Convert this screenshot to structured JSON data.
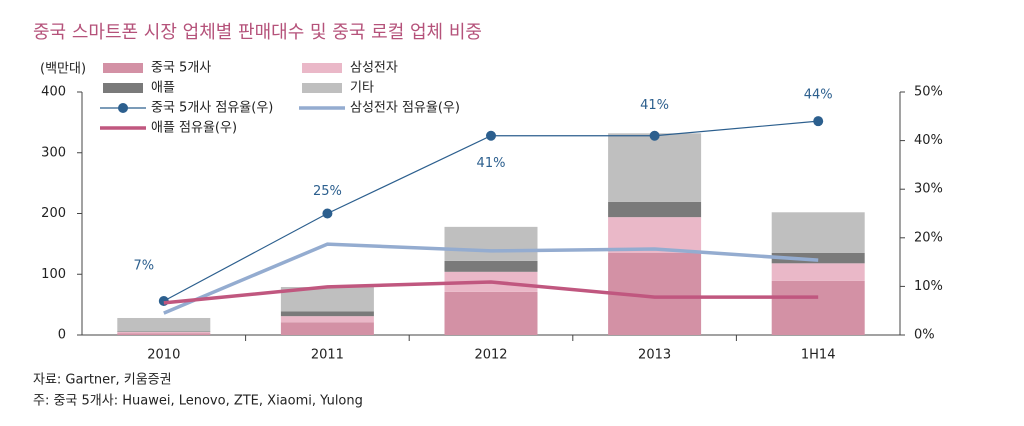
{
  "chart_data": {
    "type": "bar",
    "title": "중국 스마트폰 시장 업체별 판매대수 및 중국 로컬 업체 비중",
    "y_label": "(백만대)",
    "notes": [
      "자료: Gartner, 키움증권",
      "주: 중국 5개사: Huawei, Lenovo, ZTE, Xiaomi, Yulong"
    ],
    "categories": [
      "2010",
      "2011",
      "2012",
      "2013",
      "1H14"
    ],
    "stacked": true,
    "legend": "top-left",
    "series": [
      {
        "name": "중국 5개사",
        "type": "bar",
        "color": "#d391a5",
        "values": [
          3,
          21,
          71,
          135,
          89
        ]
      },
      {
        "name": "삼성전자",
        "type": "bar",
        "color": "#eab8c8",
        "values": [
          2,
          10,
          33,
          59,
          29
        ]
      },
      {
        "name": "애플",
        "type": "bar",
        "color": "#7a7a7a",
        "values": [
          1,
          8,
          18,
          25,
          17
        ]
      },
      {
        "name": "기타",
        "type": "bar",
        "color": "#bfbfbf",
        "values": [
          22,
          40,
          56,
          113,
          67
        ]
      },
      {
        "name": "중국 5개사 점유율(우)",
        "type": "line",
        "axis": "y2",
        "color": "#2c5f8e",
        "marker": true,
        "values": [
          7,
          25,
          41,
          41,
          44
        ],
        "value_labels": [
          "7%",
          "25%",
          "41%",
          "41%",
          "44%"
        ]
      },
      {
        "name": "삼성전자 점유율(우)",
        "type": "line",
        "axis": "y2",
        "color": "#94acd0",
        "values": [
          4.5,
          18.7,
          17.3,
          17.7,
          15.4
        ]
      },
      {
        "name": "애플 점유율(우)",
        "type": "line",
        "axis": "y2",
        "color": "#c0577f",
        "values": [
          6.6,
          9.9,
          10.9,
          7.8,
          7.8
        ]
      }
    ],
    "ylim": [
      0,
      400
    ],
    "yticks": [
      0,
      100,
      200,
      300,
      400
    ],
    "y2lim": [
      0,
      50
    ],
    "y2ticks": [
      {
        "value": 0,
        "label": "0%"
      },
      {
        "value": 10,
        "label": "10%"
      },
      {
        "value": 20,
        "label": "20%"
      },
      {
        "value": 30,
        "label": "30%"
      },
      {
        "value": 40,
        "label": "40%"
      },
      {
        "value": 50,
        "label": "50%"
      }
    ]
  }
}
